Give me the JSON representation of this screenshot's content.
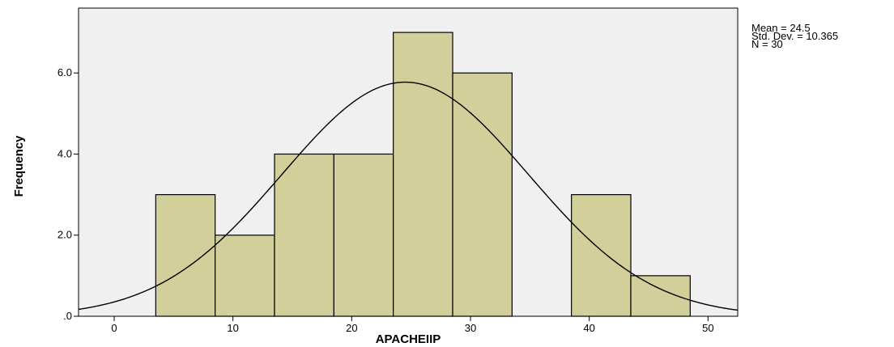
{
  "chart_data": {
    "type": "bar",
    "subtype": "histogram",
    "xlabel": "APACHEIIP",
    "ylabel": "Frequency",
    "bins": [
      {
        "start": 3.5,
        "end": 8.5,
        "count": 3
      },
      {
        "start": 8.5,
        "end": 13.5,
        "count": 2
      },
      {
        "start": 13.5,
        "end": 18.5,
        "count": 4
      },
      {
        "start": 18.5,
        "end": 23.5,
        "count": 4
      },
      {
        "start": 23.5,
        "end": 28.5,
        "count": 7
      },
      {
        "start": 28.5,
        "end": 33.5,
        "count": 6
      },
      {
        "start": 38.5,
        "end": 43.5,
        "count": 3
      },
      {
        "start": 43.5,
        "end": 48.5,
        "count": 1
      }
    ],
    "xticks": [
      0,
      10,
      20,
      30,
      40,
      50
    ],
    "xtick_labels": [
      "0",
      "10",
      "20",
      "30",
      "40",
      "50"
    ],
    "yticks": [
      0,
      2,
      4,
      6
    ],
    "ytick_labels": [
      ".0",
      "2.0",
      "4.0",
      "6.0"
    ],
    "xlim": [
      -3,
      52.5
    ],
    "ylim": [
      0,
      7.6
    ],
    "normal_curve": {
      "mean": 24.5,
      "std": 10.365,
      "n": 30,
      "bin_width": 5
    },
    "grid": false,
    "colors": {
      "bar_fill": "#d3cf9a",
      "plot_background": "#f0f0f0",
      "bar_stroke": "#000000",
      "curve": "#000000"
    }
  },
  "stats": {
    "mean": "Mean = 24.5",
    "std": "Std. Dev. = 10.365",
    "n": "N = 30"
  }
}
